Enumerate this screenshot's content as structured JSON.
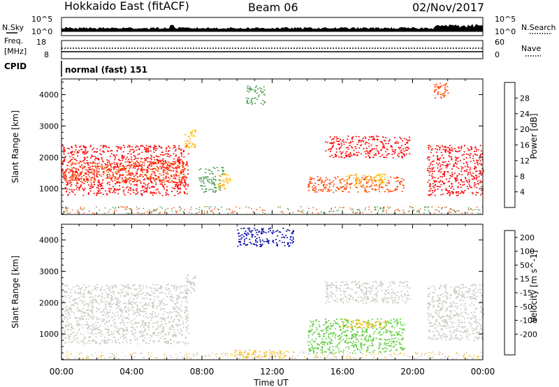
{
  "header": {
    "station": "Hokkaido East (fitACF)",
    "beam": "Beam 06",
    "date": "02/Nov/2017"
  },
  "left_labels": {
    "nsky": "N.Sky",
    "freq": "Freq.",
    "freq_unit": "[MHz]",
    "cpid": "CPID"
  },
  "right_labels": {
    "nsearch": "N.Search",
    "nave": "Nave"
  },
  "noise_panel": {
    "left_ticks": [
      "10^5",
      "10^0"
    ],
    "right_ticks": [
      "10^5",
      "10^0"
    ]
  },
  "freq_panel": {
    "left_ticks": [
      "18",
      "8"
    ],
    "right_ticks": [
      "60",
      "0"
    ]
  },
  "cpid_text": "normal (fast) 151",
  "power_colorbar": {
    "title": "Power [dB]",
    "ticks": [
      "28",
      "24",
      "20",
      "16",
      "12",
      "8",
      "4"
    ],
    "colors": [
      "#ff0000",
      "#ff4400",
      "#ff8800",
      "#ffbb00",
      "#4d9a50",
      "#2e7a6a",
      "#1a50a0",
      "#0000ff"
    ]
  },
  "velocity_colorbar": {
    "title": "Velocity [m s^-1]",
    "ticks": [
      "200",
      "100",
      "50",
      "15",
      "-15",
      "-50",
      "-100",
      "-200"
    ],
    "colors": [
      "#0000aa",
      "#1a50a0",
      "#2e8a6a",
      "#55cc33",
      "#c8c8c0",
      "#ffbb00",
      "#ff8800",
      "#ff4400",
      "#ff0000"
    ]
  },
  "chart_data": [
    {
      "type": "heatmap",
      "title": "Power",
      "xlabel": "",
      "ylabel": "Slant Range [km]",
      "x_ticks": [
        "00:00",
        "04:00",
        "08:00",
        "12:00",
        "16:00",
        "20:00",
        "00:00"
      ],
      "y_ticks": [
        "1000",
        "2000",
        "3000",
        "4000"
      ],
      "xlim": [
        0,
        24
      ],
      "ylim": [
        180,
        4500
      ],
      "colorbar_label": "Power [dB]",
      "regions": [
        {
          "t0": 0.0,
          "t1": 7.2,
          "r0": 800,
          "r1": 2400,
          "level": 28
        },
        {
          "t0": 0.0,
          "t1": 7.0,
          "r0": 1200,
          "r1": 1900,
          "level": 24
        },
        {
          "t0": 7.0,
          "t1": 7.6,
          "r0": 2300,
          "r1": 2900,
          "level": 16
        },
        {
          "t0": 7.8,
          "t1": 9.2,
          "r0": 900,
          "r1": 1700,
          "level": 12
        },
        {
          "t0": 8.8,
          "t1": 9.6,
          "r0": 1000,
          "r1": 1500,
          "level": 16
        },
        {
          "t0": 10.5,
          "t1": 11.6,
          "r0": 3700,
          "r1": 4300,
          "level": 12
        },
        {
          "t0": 15.0,
          "t1": 19.8,
          "r0": 2000,
          "r1": 2700,
          "level": 28
        },
        {
          "t0": 14.0,
          "t1": 19.5,
          "r0": 900,
          "r1": 1400,
          "level": 24
        },
        {
          "t0": 16.2,
          "t1": 18.5,
          "r0": 1100,
          "r1": 1500,
          "level": 16
        },
        {
          "t0": 20.8,
          "t1": 24.0,
          "r0": 800,
          "r1": 2400,
          "level": 28
        },
        {
          "t0": 21.2,
          "t1": 22.0,
          "r0": 3900,
          "r1": 4400,
          "level": 24
        }
      ]
    },
    {
      "type": "heatmap",
      "title": "Velocity",
      "xlabel": "Time UT",
      "ylabel": "Slant Range [km]",
      "x_ticks": [
        "00:00",
        "04:00",
        "08:00",
        "12:00",
        "16:00",
        "20:00",
        "00:00"
      ],
      "y_ticks": [
        "1000",
        "2000",
        "3000",
        "4000"
      ],
      "xlim": [
        0,
        24
      ],
      "ylim": [
        180,
        4500
      ],
      "colorbar_label": "Velocity [m s^-1]",
      "regions": [
        {
          "t0": 0.0,
          "t1": 7.2,
          "r0": 700,
          "r1": 2600,
          "level": 0
        },
        {
          "t0": 7.0,
          "t1": 7.6,
          "r0": 2300,
          "r1": 2900,
          "level": 0
        },
        {
          "t0": 10.0,
          "t1": 13.2,
          "r0": 3800,
          "r1": 4400,
          "level": 200
        },
        {
          "t0": 15.0,
          "t1": 19.8,
          "r0": 2000,
          "r1": 2700,
          "level": 0
        },
        {
          "t0": 14.0,
          "t1": 19.5,
          "r0": 400,
          "r1": 1500,
          "level": 15
        },
        {
          "t0": 16.0,
          "t1": 18.5,
          "r0": 1200,
          "r1": 1500,
          "level": -50
        },
        {
          "t0": 20.8,
          "t1": 24.0,
          "r0": 800,
          "r1": 2600,
          "level": 0
        },
        {
          "t0": 9.8,
          "t1": 12.8,
          "r0": 250,
          "r1": 500,
          "level": -50
        }
      ]
    }
  ]
}
